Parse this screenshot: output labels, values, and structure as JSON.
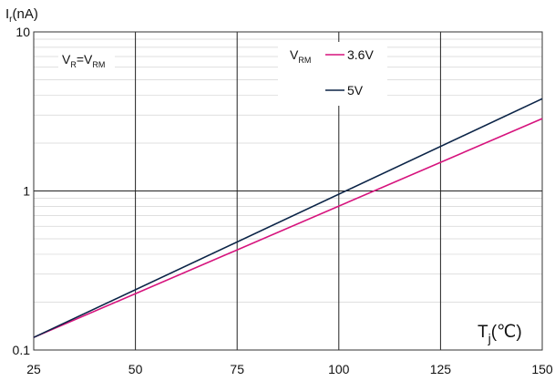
{
  "chart_data": {
    "type": "line",
    "yscale": "log",
    "title": "",
    "ylabel": {
      "main": "I",
      "sub": "r",
      "unit": "(nA)"
    },
    "xlabel": {
      "main": "T",
      "sub": "j",
      "unit": "(℃)"
    },
    "xlim": [
      25,
      150
    ],
    "ylim": [
      0.1,
      10
    ],
    "grid": true,
    "x_ticks": [
      25,
      50,
      75,
      100,
      125,
      150
    ],
    "y_ticks": [
      {
        "value": 0.1,
        "label": "0.1"
      },
      {
        "value": 1,
        "label": "1"
      },
      {
        "value": 10,
        "label": "10"
      }
    ],
    "condition_note": {
      "v1": "V",
      "s1": "R",
      "eq": "=V",
      "s2": "RM"
    },
    "legend": {
      "title_main": "V",
      "title_sub": "RM",
      "position": "top-right"
    },
    "series": [
      {
        "name": "3.6V",
        "color": "#d6137d",
        "x": [
          25,
          150
        ],
        "y": [
          0.12,
          2.85
        ]
      },
      {
        "name": "5V",
        "color": "#0b2447",
        "x": [
          25,
          150
        ],
        "y": [
          0.12,
          3.8
        ]
      }
    ]
  }
}
